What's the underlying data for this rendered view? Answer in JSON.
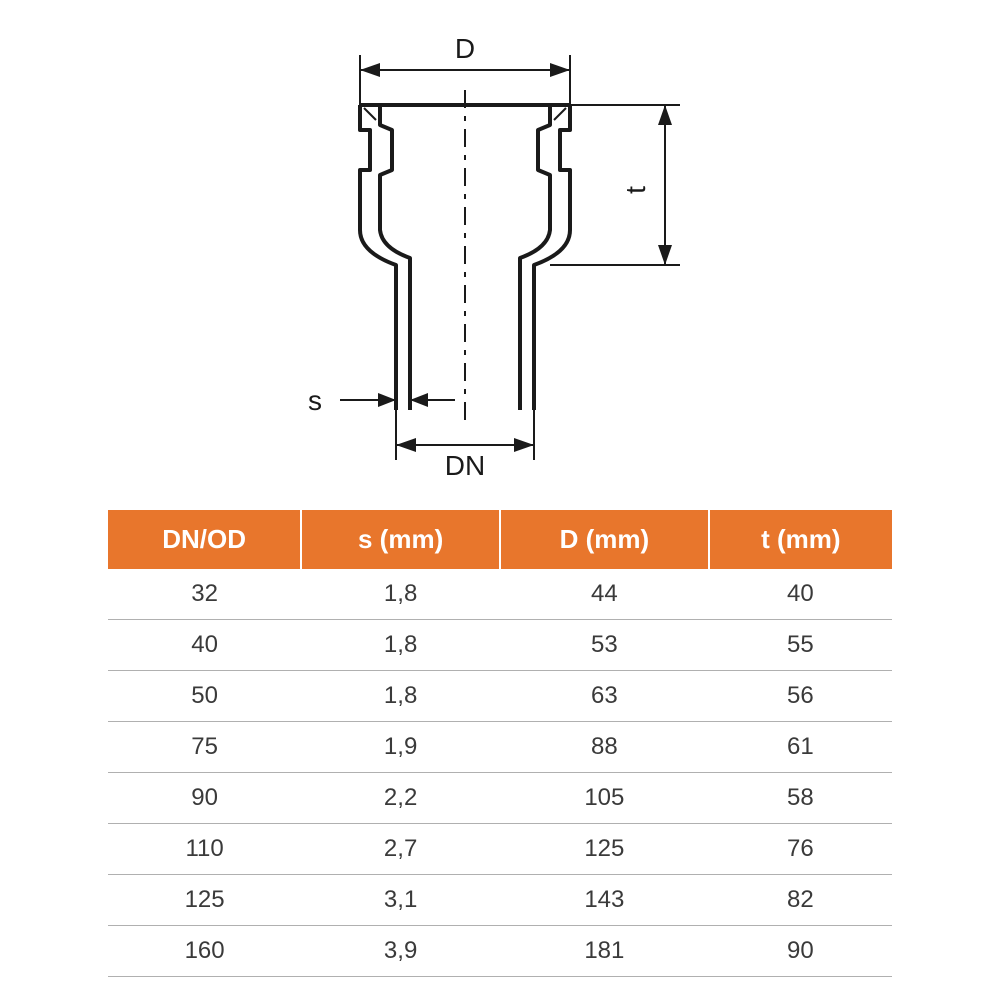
{
  "diagram": {
    "labels": {
      "D": "D",
      "t": "t",
      "s": "s",
      "DN": "DN"
    },
    "stroke_color": "#1a1a1a",
    "stroke_width_main": 4,
    "stroke_width_dim": 2,
    "centerline_dash": "12 6 4 6"
  },
  "table": {
    "header_bg": "#e8762c",
    "header_fg": "#ffffff",
    "row_border": "#b0b0b0",
    "text_color": "#3a3a3a",
    "columns": [
      "DN/OD",
      "s (mm)",
      "D (mm)",
      "t (mm)"
    ],
    "rows": [
      [
        "32",
        "1,8",
        "44",
        "40"
      ],
      [
        "40",
        "1,8",
        "53",
        "55"
      ],
      [
        "50",
        "1,8",
        "63",
        "56"
      ],
      [
        "75",
        "1,9",
        "88",
        "61"
      ],
      [
        "90",
        "2,2",
        "105",
        "58"
      ],
      [
        "110",
        "2,7",
        "125",
        "76"
      ],
      [
        "125",
        "3,1",
        "143",
        "82"
      ],
      [
        "160",
        "3,9",
        "181",
        "90"
      ]
    ]
  }
}
